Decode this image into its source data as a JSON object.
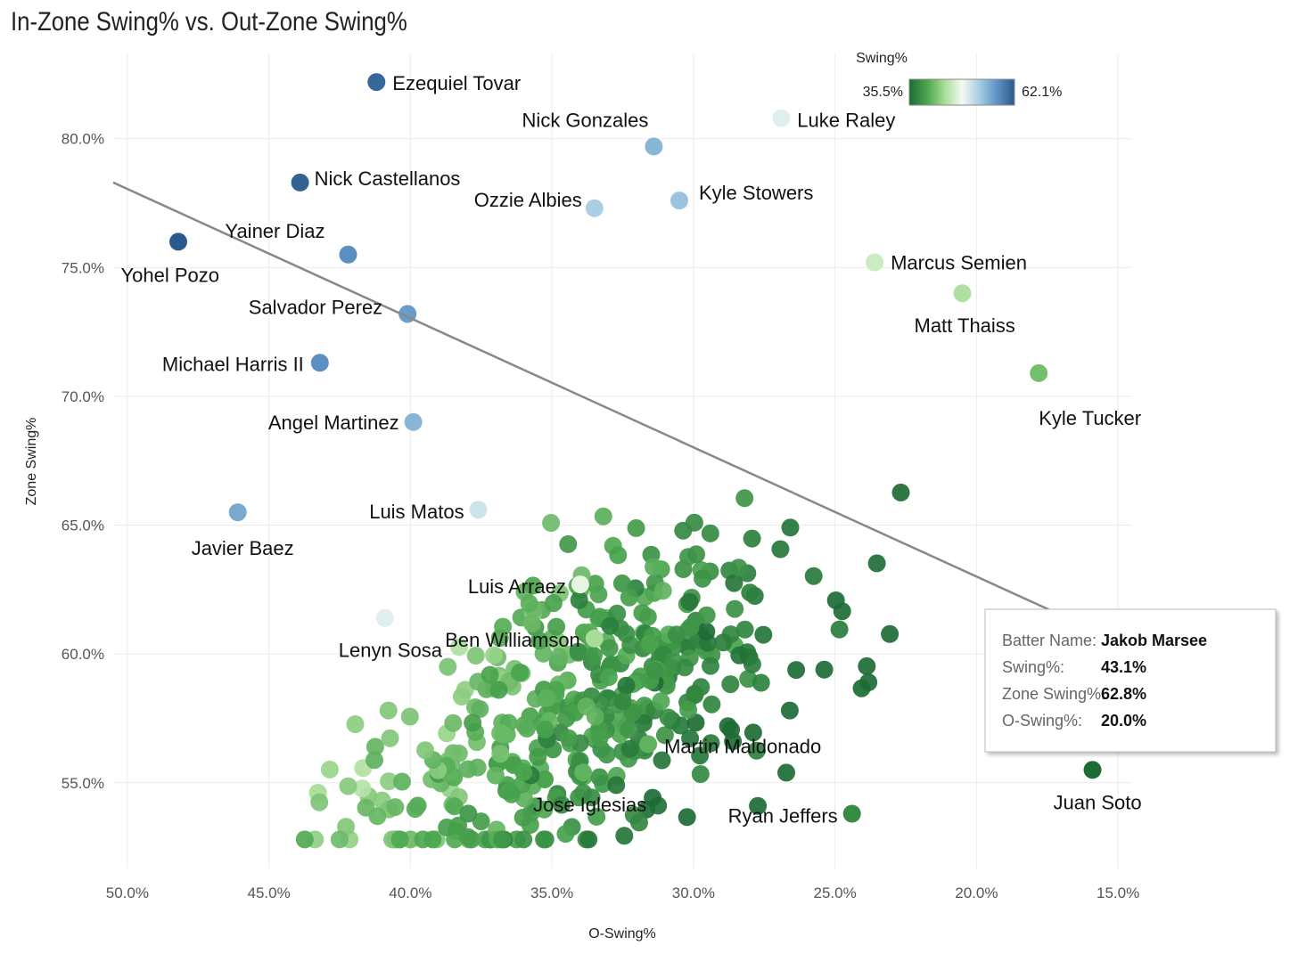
{
  "chart_data": {
    "type": "scatter",
    "title": "In-Zone Swing% vs. Out-Zone Swing%",
    "xlabel": "O-Swing%",
    "ylabel": "Zone Swing%",
    "xlim": [
      50.5,
      14.5
    ],
    "ylim": [
      51.5,
      84.0
    ],
    "x_reversed": true,
    "x_ticks": [
      "50.0%",
      "45.0%",
      "40.0%",
      "35.0%",
      "30.0%",
      "25.0%",
      "20.0%",
      "15.0%"
    ],
    "x_tick_values": [
      50,
      45,
      40,
      35,
      30,
      25,
      20,
      15
    ],
    "y_ticks": [
      "55.0%",
      "60.0%",
      "65.0%",
      "70.0%",
      "75.0%",
      "80.0%"
    ],
    "y_tick_values": [
      55,
      60,
      65,
      70,
      75,
      80
    ],
    "color_scale": {
      "title": "Swing%",
      "min_label": "35.5%",
      "max_label": "62.1%",
      "min": 35.5,
      "max": 62.1,
      "colors": [
        "#1d6b35",
        "#4aa54e",
        "#a5dc94",
        "#f4fbf2",
        "#a6cde3",
        "#5f93c3",
        "#2a5a8c"
      ]
    },
    "trend_line": {
      "x": [
        50.5,
        17.0
      ],
      "y": [
        78.3,
        61.5
      ]
    },
    "labeled_points": [
      {
        "name": "Ezequiel Tovar",
        "x": 41.2,
        "y": 82.2,
        "swing": 61.0
      },
      {
        "name": "Nick Gonzales",
        "x": 31.4,
        "y": 79.7,
        "swing": 55.0
      },
      {
        "name": "Luke Raley",
        "x": 26.9,
        "y": 80.8,
        "swing": 50.0
      },
      {
        "name": "Nick Castellanos",
        "x": 43.9,
        "y": 78.3,
        "swing": 61.5
      },
      {
        "name": "Kyle Stowers",
        "x": 30.5,
        "y": 77.6,
        "swing": 54.0
      },
      {
        "name": "Ozzie Albies",
        "x": 33.5,
        "y": 77.3,
        "swing": 53.0
      },
      {
        "name": "Yainer Diaz",
        "x": 42.2,
        "y": 75.5,
        "swing": 58.0
      },
      {
        "name": "Yohel Pozo",
        "x": 48.2,
        "y": 76.0,
        "swing": 62.1
      },
      {
        "name": "Marcus Semien",
        "x": 23.6,
        "y": 75.2,
        "swing": 46.5
      },
      {
        "name": "Salvador Perez",
        "x": 40.1,
        "y": 73.2,
        "swing": 57.0
      },
      {
        "name": "Matt Thaiss",
        "x": 20.5,
        "y": 74.0,
        "swing": 45.0
      },
      {
        "name": "Michael Harris II",
        "x": 43.2,
        "y": 71.3,
        "swing": 58.0
      },
      {
        "name": "Kyle Tucker",
        "x": 17.8,
        "y": 70.9,
        "swing": 42.0
      },
      {
        "name": "Angel Martinez",
        "x": 39.9,
        "y": 69.0,
        "swing": 55.0
      },
      {
        "name": "Luis Matos",
        "x": 37.6,
        "y": 65.6,
        "swing": 51.0
      },
      {
        "name": "Javier Baez",
        "x": 46.1,
        "y": 65.5,
        "swing": 56.0
      },
      {
        "name": "Luis Arraez",
        "x": 34.0,
        "y": 62.7,
        "swing": 48.0
      },
      {
        "name": "Ben Williamson",
        "x": 33.5,
        "y": 60.6,
        "swing": 44.5
      },
      {
        "name": "Lenyn Sosa",
        "x": 40.9,
        "y": 61.4,
        "swing": 50.0
      },
      {
        "name": "Martin Maldonado",
        "x": 31.6,
        "y": 56.5,
        "swing": 41.0
      },
      {
        "name": "Jose Iglesias",
        "x": 33.9,
        "y": 55.4,
        "swing": 41.0
      },
      {
        "name": "Ryan Jeffers",
        "x": 24.4,
        "y": 53.8,
        "swing": 38.0
      },
      {
        "name": "Juan Soto",
        "x": 15.9,
        "y": 55.5,
        "swing": 35.5
      }
    ],
    "tooltip": {
      "rows": [
        {
          "key": "Batter Name:",
          "value": "Jakob Marsee"
        },
        {
          "key": "Swing%:",
          "value": "43.1%"
        },
        {
          "key": "Zone Swing%:",
          "value": "62.8%"
        },
        {
          "key": "O-Swing%:",
          "value": "20.0%"
        }
      ]
    }
  }
}
